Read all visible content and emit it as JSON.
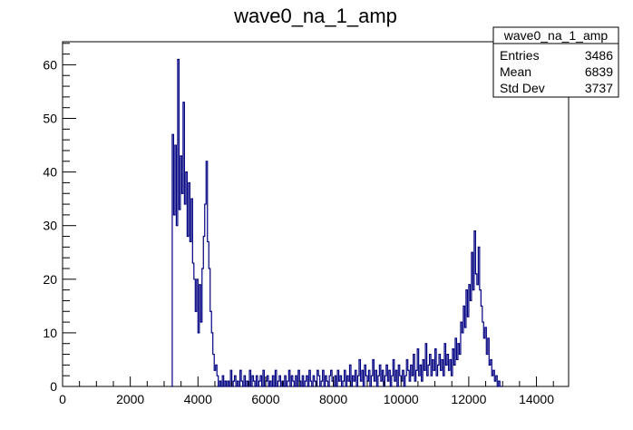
{
  "chart_data": {
    "type": "bar",
    "title": "wave0_na_1_amp",
    "xlabel": "",
    "ylabel": "",
    "xlim": [
      0,
      14950
    ],
    "ylim": [
      0,
      64.3
    ],
    "x_ticks": [
      0,
      2000,
      4000,
      6000,
      8000,
      10000,
      12000,
      14000
    ],
    "y_ticks": [
      0,
      10,
      20,
      30,
      40,
      50,
      60
    ],
    "line_color": "#000080",
    "stats_box": {
      "title": "wave0_na_1_amp",
      "rows": [
        {
          "label": "Entries",
          "value": "3486"
        },
        {
          "label": "Mean",
          "value": "6839"
        },
        {
          "label": "Std Dev",
          "value": "3737"
        }
      ]
    },
    "bins": [
      [
        3200,
        0
      ],
      [
        3240,
        47
      ],
      [
        3280,
        32
      ],
      [
        3320,
        45
      ],
      [
        3360,
        30
      ],
      [
        3400,
        61
      ],
      [
        3440,
        33
      ],
      [
        3480,
        43
      ],
      [
        3520,
        36
      ],
      [
        3560,
        53
      ],
      [
        3600,
        34
      ],
      [
        3640,
        40
      ],
      [
        3680,
        28
      ],
      [
        3720,
        38
      ],
      [
        3760,
        27
      ],
      [
        3800,
        35
      ],
      [
        3840,
        23
      ],
      [
        3880,
        20
      ],
      [
        3920,
        14
      ],
      [
        3960,
        20
      ],
      [
        4000,
        10
      ],
      [
        4040,
        19
      ],
      [
        4080,
        12
      ],
      [
        4120,
        22
      ],
      [
        4160,
        28
      ],
      [
        4200,
        34
      ],
      [
        4240,
        42
      ],
      [
        4280,
        27
      ],
      [
        4320,
        22
      ],
      [
        4360,
        14
      ],
      [
        4400,
        10
      ],
      [
        4440,
        6
      ],
      [
        4480,
        3
      ],
      [
        4520,
        4
      ],
      [
        4560,
        2
      ],
      [
        4600,
        0
      ],
      [
        4640,
        1
      ],
      [
        4680,
        0
      ],
      [
        4720,
        2
      ],
      [
        4760,
        0
      ],
      [
        4800,
        1
      ],
      [
        4840,
        0
      ],
      [
        4880,
        1
      ],
      [
        4920,
        0
      ],
      [
        4960,
        3
      ],
      [
        5000,
        0
      ],
      [
        5040,
        1
      ],
      [
        5080,
        2
      ],
      [
        5120,
        0
      ],
      [
        5160,
        1
      ],
      [
        5200,
        0
      ],
      [
        5240,
        3
      ],
      [
        5280,
        1
      ],
      [
        5320,
        0
      ],
      [
        5360,
        2
      ],
      [
        5400,
        0
      ],
      [
        5440,
        1
      ],
      [
        5480,
        0
      ],
      [
        5520,
        3
      ],
      [
        5560,
        0
      ],
      [
        5600,
        2
      ],
      [
        5640,
        1
      ],
      [
        5680,
        0
      ],
      [
        5720,
        2
      ],
      [
        5760,
        0
      ],
      [
        5800,
        1
      ],
      [
        5840,
        2
      ],
      [
        5880,
        0
      ],
      [
        5920,
        3
      ],
      [
        5960,
        0
      ],
      [
        6000,
        1
      ],
      [
        6040,
        2
      ],
      [
        6080,
        0
      ],
      [
        6120,
        1
      ],
      [
        6160,
        0
      ],
      [
        6200,
        2
      ],
      [
        6240,
        0
      ],
      [
        6280,
        3
      ],
      [
        6320,
        0
      ],
      [
        6360,
        1
      ],
      [
        6400,
        2
      ],
      [
        6440,
        0
      ],
      [
        6480,
        1
      ],
      [
        6520,
        0
      ],
      [
        6560,
        2
      ],
      [
        6600,
        0
      ],
      [
        6640,
        1
      ],
      [
        6680,
        3
      ],
      [
        6720,
        0
      ],
      [
        6760,
        2
      ],
      [
        6800,
        1
      ],
      [
        6840,
        0
      ],
      [
        6880,
        2
      ],
      [
        6920,
        0
      ],
      [
        6960,
        3
      ],
      [
        7000,
        1
      ],
      [
        7040,
        0
      ],
      [
        7080,
        2
      ],
      [
        7120,
        0
      ],
      [
        7160,
        1
      ],
      [
        7200,
        2
      ],
      [
        7240,
        0
      ],
      [
        7280,
        3
      ],
      [
        7320,
        1
      ],
      [
        7360,
        0
      ],
      [
        7400,
        2
      ],
      [
        7440,
        1
      ],
      [
        7480,
        0
      ],
      [
        7520,
        3
      ],
      [
        7560,
        2
      ],
      [
        7600,
        0
      ],
      [
        7640,
        1
      ],
      [
        7680,
        3
      ],
      [
        7720,
        0
      ],
      [
        7760,
        2
      ],
      [
        7800,
        1
      ],
      [
        7840,
        0
      ],
      [
        7880,
        2
      ],
      [
        7920,
        3
      ],
      [
        7960,
        1
      ],
      [
        8000,
        0
      ],
      [
        8040,
        2
      ],
      [
        8080,
        0
      ],
      [
        8120,
        3
      ],
      [
        8160,
        1
      ],
      [
        8200,
        2
      ],
      [
        8240,
        0
      ],
      [
        8280,
        1
      ],
      [
        8320,
        3
      ],
      [
        8360,
        0
      ],
      [
        8400,
        2
      ],
      [
        8440,
        1
      ],
      [
        8480,
        4
      ],
      [
        8520,
        0
      ],
      [
        8560,
        2
      ],
      [
        8600,
        1
      ],
      [
        8640,
        3
      ],
      [
        8680,
        0
      ],
      [
        8720,
        2
      ],
      [
        8760,
        5
      ],
      [
        8800,
        1
      ],
      [
        8840,
        3
      ],
      [
        8880,
        0
      ],
      [
        8920,
        4
      ],
      [
        8960,
        2
      ],
      [
        9000,
        1
      ],
      [
        9040,
        3
      ],
      [
        9080,
        0
      ],
      [
        9120,
        2
      ],
      [
        9160,
        5
      ],
      [
        9200,
        1
      ],
      [
        9240,
        3
      ],
      [
        9280,
        0
      ],
      [
        9320,
        2
      ],
      [
        9360,
        4
      ],
      [
        9400,
        1
      ],
      [
        9440,
        3
      ],
      [
        9480,
        0
      ],
      [
        9520,
        2
      ],
      [
        9560,
        4
      ],
      [
        9600,
        1
      ],
      [
        9640,
        3
      ],
      [
        9680,
        0
      ],
      [
        9720,
        2
      ],
      [
        9760,
        5
      ],
      [
        9800,
        1
      ],
      [
        9840,
        3
      ],
      [
        9880,
        0
      ],
      [
        9920,
        4
      ],
      [
        9960,
        2
      ],
      [
        10000,
        1
      ],
      [
        10040,
        3
      ],
      [
        10080,
        0
      ],
      [
        10120,
        2
      ],
      [
        10160,
        5
      ],
      [
        10200,
        3
      ],
      [
        10240,
        1
      ],
      [
        10280,
        4
      ],
      [
        10320,
        2
      ],
      [
        10360,
        6
      ],
      [
        10400,
        1
      ],
      [
        10440,
        3
      ],
      [
        10480,
        7
      ],
      [
        10520,
        2
      ],
      [
        10560,
        4
      ],
      [
        10600,
        1
      ],
      [
        10640,
        5
      ],
      [
        10680,
        3
      ],
      [
        10720,
        8
      ],
      [
        10760,
        2
      ],
      [
        10800,
        4
      ],
      [
        10840,
        6
      ],
      [
        10880,
        2
      ],
      [
        10920,
        5
      ],
      [
        10960,
        3
      ],
      [
        11000,
        7
      ],
      [
        11040,
        2
      ],
      [
        11080,
        4
      ],
      [
        11120,
        6
      ],
      [
        11160,
        3
      ],
      [
        11200,
        5
      ],
      [
        11240,
        2
      ],
      [
        11280,
        8
      ],
      [
        11320,
        4
      ],
      [
        11360,
        6
      ],
      [
        11400,
        3
      ],
      [
        11440,
        5
      ],
      [
        11480,
        2
      ],
      [
        11520,
        7
      ],
      [
        11560,
        4
      ],
      [
        11600,
        9
      ],
      [
        11640,
        5
      ],
      [
        11680,
        8
      ],
      [
        11720,
        6
      ],
      [
        11760,
        12
      ],
      [
        11800,
        10
      ],
      [
        11840,
        15
      ],
      [
        11880,
        11
      ],
      [
        11920,
        18
      ],
      [
        11960,
        13
      ],
      [
        12000,
        19
      ],
      [
        12040,
        16
      ],
      [
        12080,
        25
      ],
      [
        12120,
        18
      ],
      [
        12160,
        29
      ],
      [
        12200,
        21
      ],
      [
        12240,
        19
      ],
      [
        12280,
        26
      ],
      [
        12320,
        18
      ],
      [
        12360,
        15
      ],
      [
        12400,
        12
      ],
      [
        12440,
        9
      ],
      [
        12480,
        11
      ],
      [
        12520,
        6
      ],
      [
        12560,
        9
      ],
      [
        12600,
        4
      ],
      [
        12640,
        5
      ],
      [
        12680,
        2
      ],
      [
        12720,
        3
      ],
      [
        12760,
        1
      ],
      [
        12800,
        2
      ],
      [
        12840,
        0
      ],
      [
        12880,
        1
      ],
      [
        12920,
        0
      ],
      [
        12960,
        0
      ]
    ],
    "bin_width": 40
  }
}
